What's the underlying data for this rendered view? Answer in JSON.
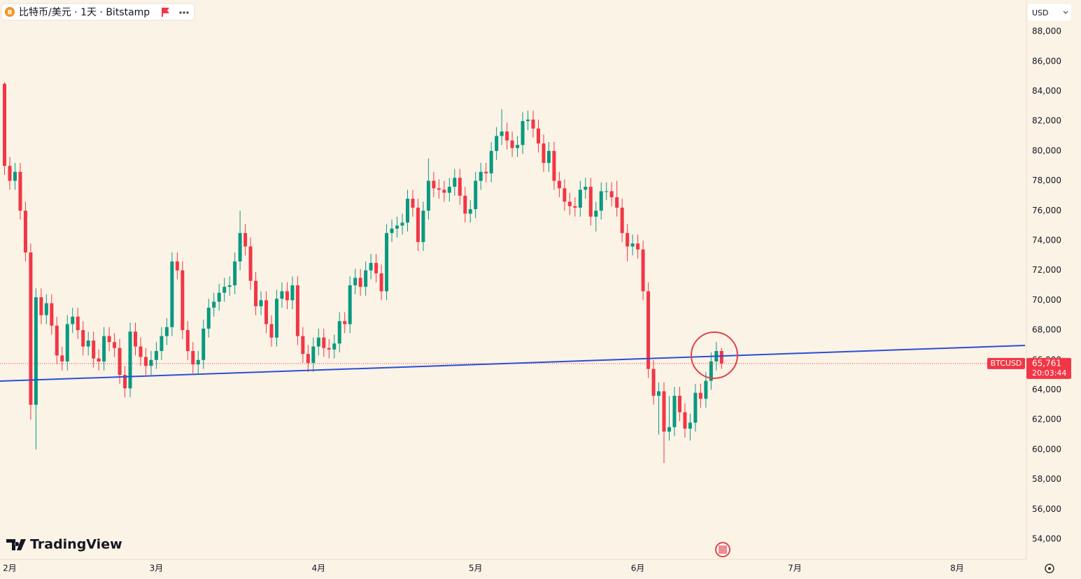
{
  "header": {
    "symbol": "比特币/美元 · 1天 · Bitstamp",
    "currency": "USD",
    "brand": "TradingView"
  },
  "chart_data": {
    "type": "candlestick",
    "up_color": "#089981",
    "down_color": "#f23645",
    "grid": false,
    "last": {
      "name": "BTCUSD",
      "value_label": "65,761",
      "countdown": "20:03:44"
    },
    "xlim": [
      -1.87,
      194.25
    ],
    "xticks": [
      {
        "value": 0,
        "label": "2月"
      },
      {
        "value": 28,
        "label": "3月"
      },
      {
        "value": 59,
        "label": "4月"
      },
      {
        "value": 89,
        "label": "5月"
      },
      {
        "value": 120,
        "label": "6月"
      },
      {
        "value": 150,
        "label": "7月"
      },
      {
        "value": 181,
        "label": "8月"
      }
    ],
    "ylim": [
      52640,
      90110
    ],
    "yticks": [
      {
        "value": 54000,
        "label": "54,000"
      },
      {
        "value": 56000,
        "label": "56,000"
      },
      {
        "value": 58000,
        "label": "58,000"
      },
      {
        "value": 60000,
        "label": "60,000"
      },
      {
        "value": 62000,
        "label": "62,000"
      },
      {
        "value": 64000,
        "label": "64,000"
      },
      {
        "value": 66000,
        "label": "66,000"
      },
      {
        "value": 68000,
        "label": "68,000"
      },
      {
        "value": 70000,
        "label": "70,000"
      },
      {
        "value": 72000,
        "label": "72,000"
      },
      {
        "value": 74000,
        "label": "74,000"
      },
      {
        "value": 76000,
        "label": "76,000"
      },
      {
        "value": 78000,
        "label": "78,000"
      },
      {
        "value": 80000,
        "label": "80,000"
      },
      {
        "value": 82000,
        "label": "82,000"
      },
      {
        "value": 84000,
        "label": "84,000"
      },
      {
        "value": 86000,
        "label": "86,000"
      },
      {
        "value": 88000,
        "label": "88,000"
      }
    ],
    "x": [
      -1,
      0,
      1,
      2,
      3,
      4,
      5,
      6,
      7,
      8,
      9,
      10,
      11,
      12,
      13,
      14,
      15,
      16,
      17,
      18,
      19,
      20,
      21,
      22,
      23,
      24,
      25,
      26,
      27,
      28,
      29,
      30,
      31,
      32,
      33,
      34,
      35,
      36,
      37,
      38,
      39,
      40,
      41,
      42,
      43,
      44,
      45,
      46,
      47,
      48,
      49,
      50,
      51,
      52,
      53,
      54,
      55,
      56,
      57,
      58,
      59,
      60,
      61,
      62,
      63,
      64,
      65,
      66,
      67,
      68,
      69,
      70,
      71,
      72,
      73,
      74,
      75,
      76,
      77,
      78,
      79,
      80,
      81,
      82,
      83,
      84,
      85,
      86,
      87,
      88,
      89,
      90,
      91,
      92,
      93,
      94,
      95,
      96,
      97,
      98,
      99,
      100,
      101,
      102,
      103,
      104,
      105,
      106,
      107,
      108,
      109,
      110,
      111,
      112,
      113,
      114,
      115,
      116,
      117,
      118,
      119,
      120,
      121,
      122,
      123,
      124,
      125,
      126,
      127,
      128,
      129,
      130,
      131,
      132,
      133,
      134,
      135,
      136
    ],
    "open": [
      84500,
      79000,
      78000,
      78600,
      76000,
      73200,
      63000,
      70200,
      69000,
      69800,
      68300,
      66300,
      65900,
      68400,
      68900,
      68000,
      66900,
      67300,
      66100,
      65900,
      67600,
      67200,
      66800,
      65000,
      64100,
      67900,
      66900,
      66200,
      65600,
      66000,
      66600,
      67600,
      68200,
      72600,
      72000,
      68000,
      66600,
      65700,
      66000,
      68100,
      69500,
      69900,
      70500,
      70900,
      71000,
      72600,
      74500,
      73600,
      71300,
      69600,
      70000,
      68400,
      67500,
      70100,
      70600,
      70000,
      71000,
      67600,
      66400,
      65800,
      66900,
      67500,
      66800,
      66700,
      67100,
      68600,
      68400,
      71000,
      71500,
      70900,
      72000,
      72500,
      71800,
      70600,
      74500,
      74800,
      75000,
      75200,
      76800,
      76200,
      73900,
      76000,
      78000,
      77500,
      77400,
      77200,
      77600,
      78200,
      77000,
      75800,
      76100,
      78000,
      78600,
      78500,
      80000,
      81000,
      81300,
      80700,
      80200,
      80400,
      82000,
      82100,
      81500,
      80500,
      79200,
      80000,
      78000,
      77500,
      76600,
      76300,
      76200,
      77400,
      77600,
      75600,
      76000,
      77300,
      77300,
      76900,
      76200,
      74500,
      73600,
      73800,
      73400,
      70600,
      65400,
      63600,
      63900,
      61200,
      61500,
      63600,
      62500,
      61400,
      61800,
      63800,
      63400,
      64600,
      65900,
      66600
    ],
    "high": [
      84600,
      79600,
      79200,
      79200,
      76600,
      73800,
      70800,
      70800,
      70400,
      70400,
      68900,
      66900,
      69000,
      69500,
      69500,
      68600,
      67900,
      67900,
      66700,
      68200,
      68200,
      67800,
      67400,
      65600,
      68500,
      68500,
      67500,
      66800,
      66600,
      67200,
      68200,
      68800,
      73200,
      73200,
      72600,
      68600,
      67200,
      66600,
      68700,
      70100,
      70500,
      71100,
      71500,
      71600,
      73200,
      76000,
      75100,
      74200,
      71900,
      70600,
      70600,
      69000,
      70700,
      71200,
      71200,
      71600,
      71600,
      68200,
      67000,
      67500,
      68100,
      68100,
      67400,
      67700,
      69200,
      69200,
      71600,
      72100,
      72100,
      72600,
      73100,
      73100,
      72400,
      75100,
      75400,
      75600,
      75800,
      77400,
      77400,
      76800,
      76600,
      79500,
      78600,
      78100,
      78000,
      78200,
      78800,
      78800,
      77600,
      76700,
      78600,
      79200,
      79200,
      80600,
      81600,
      82800,
      81900,
      81300,
      81000,
      82600,
      82700,
      82700,
      82100,
      81100,
      80600,
      80600,
      78600,
      78100,
      77200,
      76900,
      78000,
      78200,
      78200,
      76600,
      77900,
      77900,
      77900,
      78000,
      76800,
      75100,
      74400,
      74400,
      74000,
      71200,
      66000,
      64500,
      64500,
      63600,
      64200,
      64200,
      63100,
      62400,
      64400,
      64400,
      65200,
      66500,
      67200,
      66800
    ],
    "low": [
      78400,
      77400,
      77400,
      75400,
      72600,
      62000,
      60000,
      68400,
      68400,
      67700,
      65700,
      65300,
      65300,
      67800,
      67400,
      66300,
      66300,
      65500,
      65300,
      65300,
      66600,
      66200,
      64400,
      63500,
      63500,
      66300,
      65600,
      65000,
      65000,
      65400,
      66000,
      67000,
      67600,
      71400,
      67400,
      66000,
      65100,
      65100,
      65400,
      67500,
      68900,
      69300,
      69900,
      70300,
      70400,
      72000,
      73000,
      70700,
      69000,
      69000,
      67800,
      66900,
      66900,
      69500,
      69400,
      69400,
      67000,
      65800,
      65200,
      65200,
      66300,
      66200,
      66100,
      66100,
      66500,
      67800,
      67800,
      70400,
      70300,
      70300,
      71400,
      71200,
      70000,
      70000,
      73900,
      74200,
      74400,
      74600,
      75600,
      73300,
      73300,
      75400,
      76900,
      76800,
      76600,
      76600,
      77000,
      76400,
      75200,
      75200,
      75500,
      77400,
      77900,
      77900,
      79400,
      80400,
      80100,
      79600,
      79600,
      79800,
      81400,
      80900,
      79900,
      78600,
      78600,
      77400,
      76900,
      76000,
      75700,
      75600,
      75600,
      76800,
      75000,
      74600,
      75400,
      76700,
      76300,
      75600,
      73900,
      72600,
      73000,
      72800,
      70000,
      64800,
      63000,
      61000,
      59100,
      60600,
      60900,
      61900,
      60800,
      60600,
      61200,
      62800,
      62800,
      64000,
      65300,
      65400
    ],
    "close": [
      79000,
      78000,
      78600,
      76000,
      73200,
      63000,
      70200,
      69000,
      69800,
      68300,
      66300,
      65900,
      68400,
      68900,
      68000,
      66900,
      67300,
      66100,
      65900,
      67600,
      67200,
      66800,
      65000,
      64100,
      67900,
      66900,
      66200,
      65600,
      66000,
      66600,
      67600,
      68200,
      72600,
      72000,
      68000,
      66600,
      65700,
      66000,
      68100,
      69500,
      69900,
      70500,
      70900,
      71000,
      72600,
      74500,
      73600,
      71300,
      69600,
      70000,
      68400,
      67500,
      70100,
      70600,
      70000,
      71000,
      67600,
      66400,
      65800,
      66900,
      67500,
      66800,
      66700,
      67100,
      68600,
      68400,
      71000,
      71500,
      70900,
      72000,
      72500,
      71800,
      70600,
      74500,
      74800,
      75000,
      75200,
      76800,
      76200,
      73900,
      76000,
      78000,
      77500,
      77400,
      77200,
      77600,
      78200,
      77000,
      75800,
      76100,
      78000,
      78600,
      78500,
      80000,
      81000,
      81300,
      80700,
      80200,
      80400,
      82000,
      82100,
      81500,
      80500,
      79200,
      80000,
      78000,
      77500,
      76600,
      76300,
      76200,
      77400,
      77600,
      75600,
      76000,
      77300,
      77300,
      76900,
      76200,
      74500,
      73600,
      73800,
      73400,
      70600,
      65400,
      63600,
      63900,
      61200,
      61500,
      63600,
      62500,
      61400,
      61800,
      63800,
      63400,
      64600,
      65900,
      66600,
      65761
    ]
  }
}
